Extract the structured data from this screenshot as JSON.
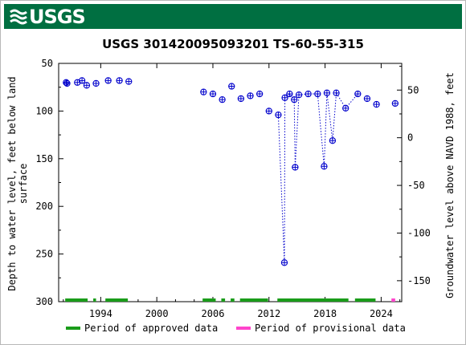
{
  "header": {
    "logo_text": "USGS"
  },
  "chart_data": {
    "type": "scatter",
    "title": "USGS 301420095093201 TS-60-55-315",
    "xlabel": "",
    "ylabel": "Depth to water level, feet below land surface",
    "y2label": "Groundwater level above NAVD 1988, feet",
    "xlim": [
      1989.5,
      2026.2
    ],
    "ylim": [
      300,
      50
    ],
    "y2lim": [
      -172,
      78
    ],
    "x_ticks": [
      1994,
      2000,
      2006,
      2012,
      2018,
      2024
    ],
    "y_ticks": [
      50,
      100,
      150,
      200,
      250,
      300
    ],
    "y2_ticks": [
      50,
      0,
      -50,
      -100,
      -150
    ],
    "grid": false,
    "series": [
      {
        "color": "#0000cc",
        "marker": "circle-plus",
        "x": [
          1990.3,
          1990.4,
          1991.5,
          1992.0,
          1992.5,
          1993.5,
          1994.8,
          1996.0,
          1997.0,
          2005.0,
          2006.0,
          2007.0,
          2008.0,
          2009.0,
          2010.0,
          2011.0,
          2012.0,
          2013.0,
          2013.65,
          2013.7,
          2014.2,
          2014.7,
          2014.8,
          2015.2,
          2016.2,
          2017.2,
          2017.9,
          2018.2,
          2018.8,
          2019.2,
          2020.2,
          2021.5,
          2022.5,
          2023.5,
          2025.5
        ],
        "y": [
          70,
          71,
          70,
          68,
          73,
          71,
          68,
          68,
          69,
          80,
          82,
          88,
          74,
          87,
          84,
          82,
          100,
          104,
          259,
          86,
          82,
          88,
          159,
          83,
          82,
          82,
          158,
          81,
          131,
          81,
          97,
          82,
          87,
          93,
          92
        ],
        "connected_runs": [
          [
            17,
            31
          ]
        ]
      }
    ],
    "periods": {
      "approved": {
        "label": "Period of approved data",
        "color": "#1a9c1a",
        "ranges": [
          [
            1990.2,
            1992.6
          ],
          [
            1993.2,
            1993.5
          ],
          [
            1994.5,
            1996.9
          ],
          [
            2004.9,
            2006.3
          ],
          [
            2006.9,
            2007.3
          ],
          [
            2007.9,
            2008.3
          ],
          [
            2008.9,
            2011.9
          ],
          [
            2012.9,
            2020.5
          ],
          [
            2021.2,
            2023.4
          ]
        ]
      },
      "provisional": {
        "label": "Period of provisional data",
        "color": "#ff44cc",
        "ranges": [
          [
            2025.1,
            2025.5
          ]
        ]
      }
    }
  }
}
